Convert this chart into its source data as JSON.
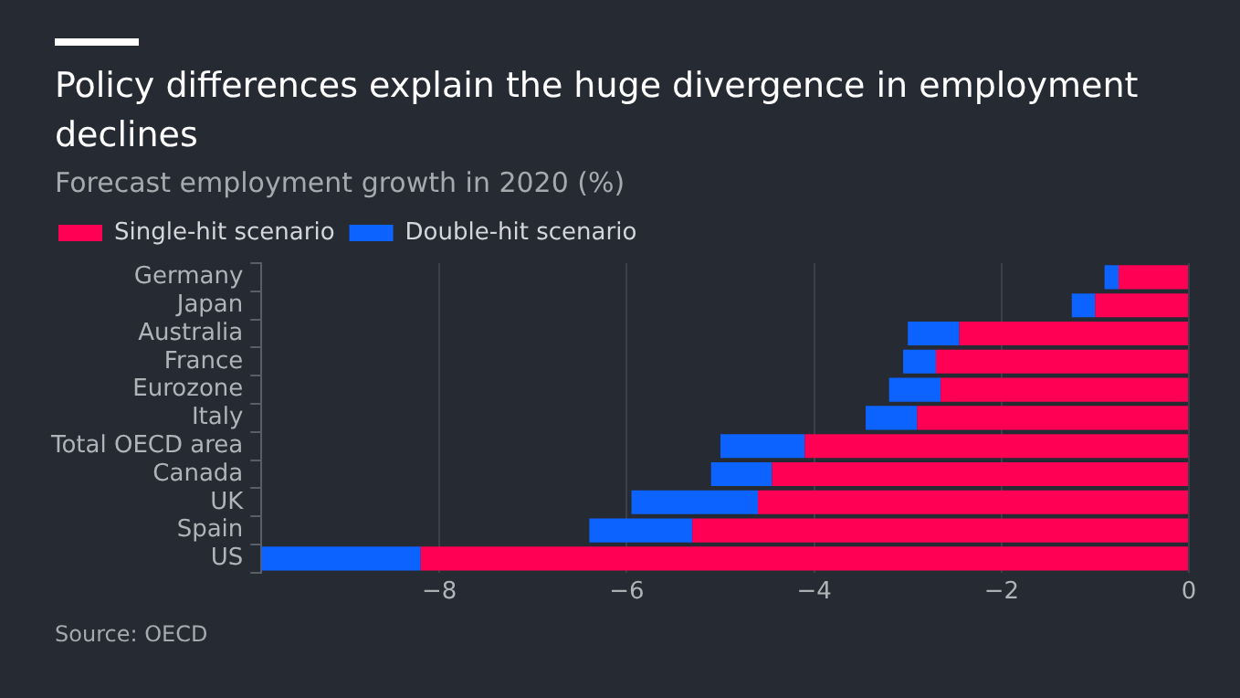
{
  "chart_data": {
    "type": "bar",
    "title": "Policy differences explain the huge divergence in employment declines",
    "subtitle": "Forecast employment growth in 2020 (%)",
    "categories": [
      "Germany",
      "Japan",
      "Australia",
      "France",
      "Eurozone",
      "Italy",
      "Total OECD area",
      "Canada",
      "UK",
      "Spain",
      "US"
    ],
    "orientation": "horizontal",
    "stacked": true,
    "series": [
      {
        "name": "Single-hit scenario",
        "color": "#ff0055",
        "values": [
          -0.75,
          -1.0,
          -2.45,
          -2.7,
          -2.65,
          -2.9,
          -4.1,
          -4.45,
          -4.6,
          -5.3,
          -8.2
        ]
      },
      {
        "name": "Double-hit scenario",
        "color": "#0d63ff",
        "values": [
          -0.15,
          -0.25,
          -0.55,
          -0.35,
          -0.55,
          -0.55,
          -0.9,
          -0.65,
          -1.35,
          -1.1,
          -1.7
        ]
      }
    ],
    "xlim": [
      -9.9,
      0
    ],
    "xticks": [
      -8,
      -6,
      -4,
      -2,
      0
    ],
    "grid": "x",
    "legend": "top left",
    "annotations": [
      "Source: OECD"
    ]
  }
}
